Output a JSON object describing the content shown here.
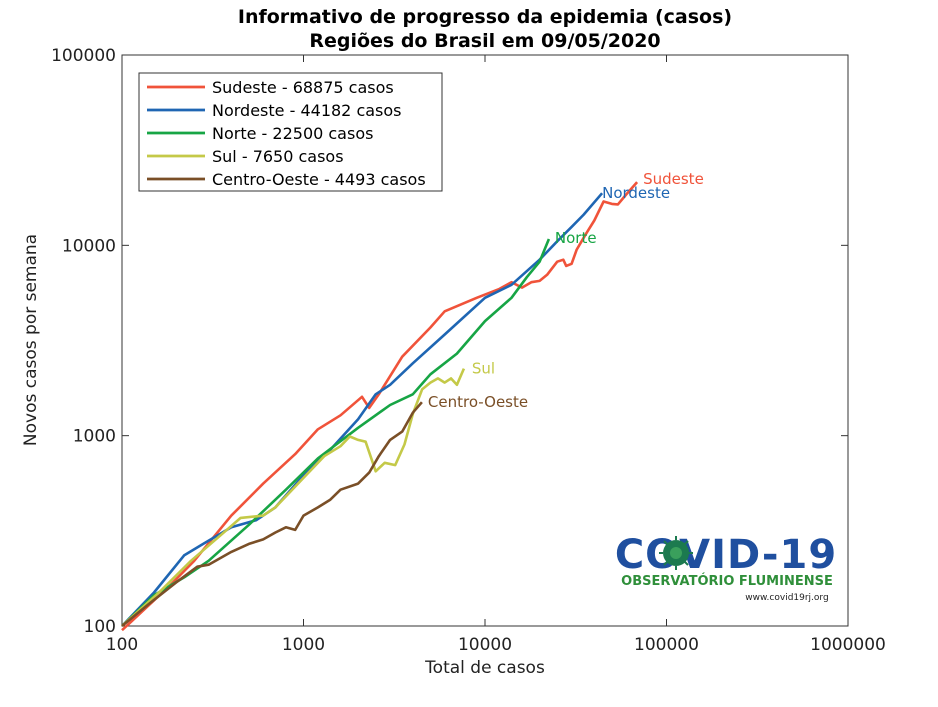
{
  "chart_data": {
    "type": "line",
    "title": "Informativo de progresso da epidemia (casos)",
    "subtitle": "Regiões do Brasil em 09/05/2020",
    "xlabel": "Total de casos",
    "ylabel": "Novos casos por semana",
    "xscale": "log",
    "yscale": "log",
    "xlim": [
      100,
      1000000
    ],
    "ylim": [
      100,
      100000
    ],
    "x_ticks": [
      "100",
      "1000",
      "10000",
      "100000",
      "1000000"
    ],
    "y_ticks": [
      "100",
      "1000",
      "10000",
      "100000"
    ],
    "grid": false,
    "legend_position": "top-left",
    "series": [
      {
        "name": "Sudeste - 68875 casos",
        "end_label": "Sudeste",
        "color": "#f0533a",
        "points": [
          [
            100,
            95
          ],
          [
            130,
            120
          ],
          [
            180,
            160
          ],
          [
            250,
            220
          ],
          [
            400,
            380
          ],
          [
            600,
            560
          ],
          [
            900,
            800
          ],
          [
            1200,
            1080
          ],
          [
            1600,
            1280
          ],
          [
            2100,
            1600
          ],
          [
            2300,
            1400
          ],
          [
            2600,
            1650
          ],
          [
            3500,
            2600
          ],
          [
            5000,
            3700
          ],
          [
            6000,
            4500
          ],
          [
            9000,
            5300
          ],
          [
            12000,
            5900
          ],
          [
            14000,
            6400
          ],
          [
            16000,
            6000
          ],
          [
            18000,
            6400
          ],
          [
            20000,
            6500
          ],
          [
            22000,
            7000
          ],
          [
            25000,
            8200
          ],
          [
            27000,
            8400
          ],
          [
            28000,
            7800
          ],
          [
            30000,
            8000
          ],
          [
            32000,
            9500
          ],
          [
            36000,
            11500
          ],
          [
            40000,
            13500
          ],
          [
            45000,
            17000
          ],
          [
            50000,
            16500
          ],
          [
            54000,
            16400
          ],
          [
            60000,
            18500
          ],
          [
            68875,
            21500
          ]
        ]
      },
      {
        "name": "Nordeste - 44182 casos",
        "end_label": "Nordeste",
        "color": "#1f66b3",
        "points": [
          [
            100,
            100
          ],
          [
            150,
            150
          ],
          [
            220,
            235
          ],
          [
            280,
            270
          ],
          [
            400,
            330
          ],
          [
            550,
            360
          ],
          [
            600,
            380
          ],
          [
            700,
            420
          ],
          [
            1000,
            620
          ],
          [
            1400,
            840
          ],
          [
            2000,
            1220
          ],
          [
            2500,
            1650
          ],
          [
            3000,
            1850
          ],
          [
            4000,
            2400
          ],
          [
            6000,
            3400
          ],
          [
            10000,
            5300
          ],
          [
            14000,
            6200
          ],
          [
            20000,
            8400
          ],
          [
            25000,
            10500
          ],
          [
            30000,
            12500
          ],
          [
            35000,
            14500
          ],
          [
            44182,
            18800
          ]
        ]
      },
      {
        "name": "Norte - 22500 casos",
        "end_label": "Norte",
        "color": "#17a545",
        "points": [
          [
            100,
            100
          ],
          [
            150,
            145
          ],
          [
            220,
            180
          ],
          [
            300,
            220
          ],
          [
            500,
            340
          ],
          [
            800,
            520
          ],
          [
            1200,
            760
          ],
          [
            2000,
            1100
          ],
          [
            3000,
            1450
          ],
          [
            4000,
            1650
          ],
          [
            5000,
            2100
          ],
          [
            7000,
            2700
          ],
          [
            10000,
            4000
          ],
          [
            14000,
            5300
          ],
          [
            17000,
            6800
          ],
          [
            20000,
            8200
          ],
          [
            22500,
            10800
          ]
        ]
      },
      {
        "name": "Sul - 7650 casos",
        "end_label": "Sul",
        "color": "#c4c948",
        "points": [
          [
            100,
            100
          ],
          [
            160,
            150
          ],
          [
            240,
            220
          ],
          [
            350,
            300
          ],
          [
            450,
            370
          ],
          [
            600,
            380
          ],
          [
            700,
            420
          ],
          [
            800,
            480
          ],
          [
            1000,
            600
          ],
          [
            1300,
            780
          ],
          [
            1600,
            880
          ],
          [
            1800,
            990
          ],
          [
            2000,
            950
          ],
          [
            2200,
            930
          ],
          [
            2500,
            650
          ],
          [
            2800,
            720
          ],
          [
            3200,
            700
          ],
          [
            3600,
            900
          ],
          [
            4000,
            1300
          ],
          [
            4500,
            1750
          ],
          [
            5000,
            1900
          ],
          [
            5500,
            2000
          ],
          [
            6000,
            1900
          ],
          [
            6500,
            2000
          ],
          [
            7000,
            1850
          ],
          [
            7650,
            2250
          ]
        ]
      },
      {
        "name": "Centro-Oeste - 4493 casos",
        "end_label": "Centro-Oeste",
        "color": "#7a4f27",
        "points": [
          [
            100,
            100
          ],
          [
            140,
            130
          ],
          [
            200,
            170
          ],
          [
            260,
            205
          ],
          [
            300,
            210
          ],
          [
            400,
            245
          ],
          [
            500,
            270
          ],
          [
            600,
            285
          ],
          [
            700,
            310
          ],
          [
            800,
            330
          ],
          [
            900,
            320
          ],
          [
            1000,
            380
          ],
          [
            1200,
            420
          ],
          [
            1400,
            460
          ],
          [
            1600,
            520
          ],
          [
            2000,
            560
          ],
          [
            2300,
            640
          ],
          [
            2600,
            780
          ],
          [
            3000,
            950
          ],
          [
            3500,
            1050
          ],
          [
            4000,
            1320
          ],
          [
            4493,
            1500
          ]
        ]
      }
    ]
  },
  "logo": {
    "title": "COVID-19",
    "subtitle": "OBSERVATÓRIO FLUMINENSE",
    "url": "www.covid19rj.org",
    "colors": {
      "blue": "#1f4f9f",
      "green": "#2f8f3a",
      "virus": "#1c7a4f"
    }
  }
}
